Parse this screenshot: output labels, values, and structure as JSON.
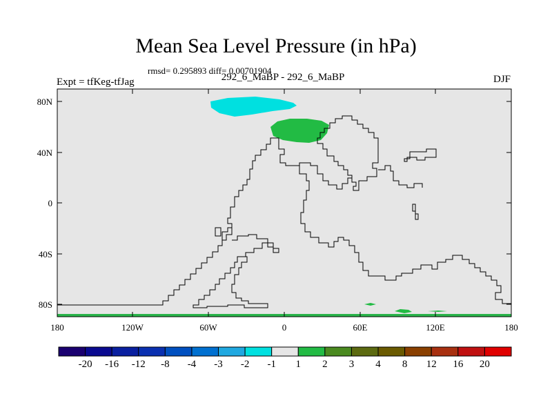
{
  "title": "Mean Sea Level Pressure (in hPa)",
  "stats": "rmsd= 0.295893 diff= 0.00701904",
  "left_label": "Expt = tfKeg-tfJag",
  "center_label": "292_6_MaBP - 292_6_MaBP",
  "right_label": "DJF",
  "axes": {
    "x_ticks": [
      "180",
      "120W",
      "60W",
      "0",
      "60E",
      "120E",
      "180"
    ],
    "y_ticks": [
      "80N",
      "40N",
      "0",
      "40S",
      "80S"
    ]
  },
  "colors": {
    "background": "#e6e6e6",
    "coastline": "#000000",
    "cyan": "#00e0e0",
    "green": "#22bb44",
    "green_band": "#2ab44a"
  },
  "colorbar": {
    "labels": [
      "-20",
      "-16",
      "-12",
      "-8",
      "-4",
      "-3",
      "-2",
      "-1",
      "1",
      "2",
      "3",
      "4",
      "8",
      "12",
      "16",
      "20"
    ],
    "colors": [
      "#1a0070",
      "#0a0a90",
      "#0a20a0",
      "#0a30b0",
      "#0050c0",
      "#0070d0",
      "#20a8e0",
      "#00e0e0",
      "#e6e6e6",
      "#22bb44",
      "#4a8a20",
      "#5c6a10",
      "#6a5a00",
      "#8a4000",
      "#a83010",
      "#c01010",
      "#e00000"
    ]
  },
  "anomalies": [
    {
      "name": "cyan-patch-north-atlantic",
      "value_range": "-2 to -1"
    },
    {
      "name": "green-patch-europe",
      "value_range": "1 to 2"
    },
    {
      "name": "green-band-antarctic",
      "value_range": "1 to 2"
    }
  ]
}
